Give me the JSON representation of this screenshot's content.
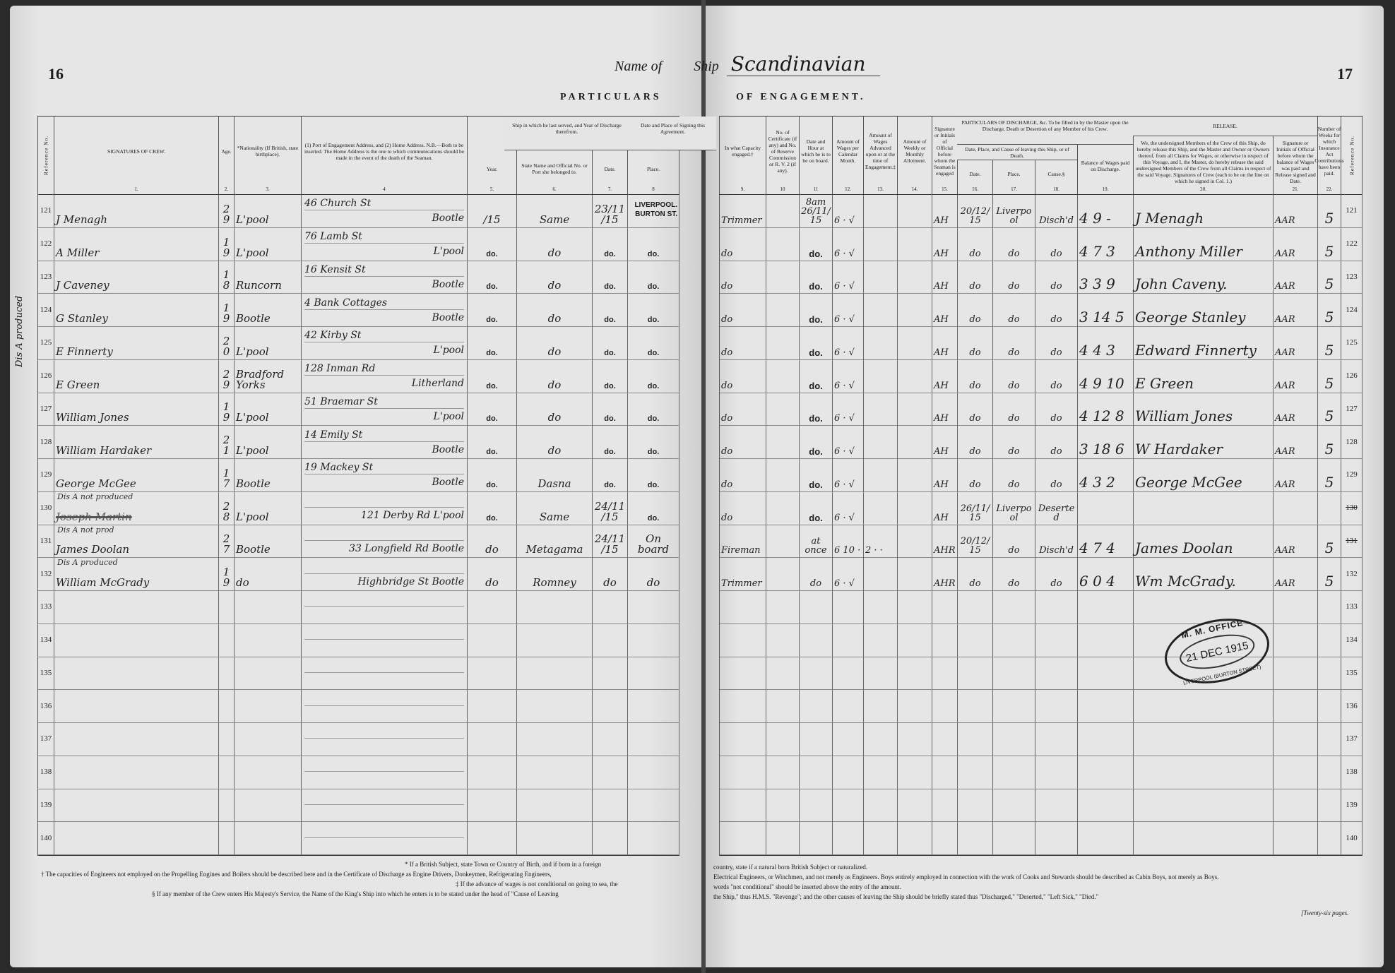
{
  "left_page_number": "16",
  "right_page_number": "17",
  "title": {
    "label_name": "Name",
    "label_of": "of",
    "label_ship": "Ship",
    "ship_name": "Scandinavian"
  },
  "banner_left": "PARTICULARS",
  "banner_right": "OF ENGAGEMENT.",
  "margin_note": "Dis A produced",
  "left_headers": [
    {
      "label": "Reference No.",
      "num": "",
      "vertical": true
    },
    {
      "label": "SIGNATURES OF CREW.",
      "num": "1."
    },
    {
      "label": "Age.",
      "num": "2."
    },
    {
      "label": "*Nationality (If British, state birthplace).",
      "num": "3."
    },
    {
      "label": "(1) Port of Engagement Address, and (2) Home Address. N.B.—Both to be inserted. The Home Address is the one to which communications should be made in the event of the death of the Seaman.",
      "num": "4"
    },
    {
      "label": "Year.",
      "num": "5.",
      "low": true
    },
    {
      "label": "State Name and Official No. or Port she belonged to.",
      "num": "6.",
      "low": true
    },
    {
      "label": "Date.",
      "num": "7.",
      "low": true
    },
    {
      "label": "Place.",
      "num": "8",
      "low": true
    }
  ],
  "left_groups": {
    "last_ship": "Ship in which he last served, and Year of Discharge therefrom.",
    "signing": "Date and Place of Signing this Agreement."
  },
  "right_headers": [
    {
      "label": "In what Capacity engaged.†",
      "num": "9."
    },
    {
      "label": "No. of Certificate (if any) and No. of Reserve Commission or R. V. 2 (if any).",
      "num": "10"
    },
    {
      "label": "Date and Hour at which he is to be on board.",
      "num": "11"
    },
    {
      "label": "Amount of Wages per Calendar Month.",
      "num": "12."
    },
    {
      "label": "Amount of Wages Advanced upon or at the time of Engagement.‡",
      "num": "13."
    },
    {
      "label": "Amount of Weekly or Monthly Allotment.",
      "num": "14."
    },
    {
      "label": "Signature or Initials of Official before whom the Seaman is engaged",
      "num": "15."
    },
    {
      "label": "Date.",
      "num": "16.",
      "low": true
    },
    {
      "label": "Place.",
      "num": "17.",
      "low": true
    },
    {
      "label": "Cause.§",
      "num": "18.",
      "low": true
    },
    {
      "label": "Balance of Wages paid on Discharge.",
      "num": "19.",
      "low": true
    },
    {
      "label": "We, the undersigned Members of the Crew of this Ship, do hereby release this Ship, and the Master and Owner or Owners thereof, from all Claims for Wages, or otherwise in respect of this Voyage, and I, the Master, do hereby release the said undersigned Members of the Crew from all Claims in respect of the said Voyage. Signatures of Crew (each to be on the line on which he signed in Col. 1.)",
      "num": "20.",
      "low": true
    },
    {
      "label": "Signature or Initials of Official before whom the balance of Wages was paid and Release signed and Date.",
      "num": "21.",
      "low": true
    },
    {
      "label": "Number of Weeks for which Insurance Act Contributions have been paid.",
      "num": "22."
    },
    {
      "label": "Reference No.",
      "num": "",
      "vertical": true
    }
  ],
  "right_groups": {
    "discharge": "PARTICULARS OF DISCHARGE, &c. To be filled in by the Master upon the Discharge, Death or Desertion of any Member of his Crew.",
    "discharge_sub": "Date, Place, and Cause of leaving this Ship, or of Death.",
    "release": "RELEASE."
  },
  "signing_place_stamp": [
    "LIVERPOOL.",
    "BURTON ST."
  ],
  "crew_left": [
    {
      "ref": "121",
      "signature": "J Menagh",
      "age": "29",
      "nationality": "L'pool",
      "addr1": "46 Church St",
      "addr2": "Bootle",
      "year": "/15",
      "ship": "Same",
      "date": "23/11/15",
      "place": ""
    },
    {
      "ref": "122",
      "signature": "A Miller",
      "age": "19",
      "nationality": "L'pool",
      "addr1": "76 Lamb St",
      "addr2": "L'pool",
      "year": "do.",
      "ship": "do",
      "date": "do.",
      "place": "do."
    },
    {
      "ref": "123",
      "signature": "J Caveney",
      "age": "18",
      "nationality": "Runcorn",
      "addr1": "16 Kensit St",
      "addr2": "Bootle",
      "year": "do.",
      "ship": "do",
      "date": "do.",
      "place": "do."
    },
    {
      "ref": "124",
      "signature": "G Stanley",
      "age": "19",
      "nationality": "Bootle",
      "addr1": "4 Bank Cottages",
      "addr2": "Bootle",
      "year": "do.",
      "ship": "do",
      "date": "do.",
      "place": "do."
    },
    {
      "ref": "125",
      "signature": "E Finnerty",
      "age": "20",
      "nationality": "L'pool",
      "addr1": "42 Kirby St",
      "addr2": "L'pool",
      "year": "do.",
      "ship": "do",
      "date": "do.",
      "place": "do."
    },
    {
      "ref": "126",
      "signature": "E Green",
      "age": "29",
      "nationality": "Bradford Yorks",
      "addr1": "128 Inman Rd",
      "addr2": "Litherland",
      "year": "do.",
      "ship": "do",
      "date": "do.",
      "place": "do."
    },
    {
      "ref": "127",
      "signature": "William Jones",
      "age": "19",
      "nationality": "L'pool",
      "addr1": "51 Braemar St",
      "addr2": "L'pool",
      "year": "do.",
      "ship": "do",
      "date": "do.",
      "place": "do."
    },
    {
      "ref": "128",
      "signature": "William Hardaker",
      "age": "21",
      "nationality": "L'pool",
      "addr1": "14 Emily St",
      "addr2": "Bootle",
      "year": "do.",
      "ship": "do",
      "date": "do.",
      "place": "do."
    },
    {
      "ref": "129",
      "signature": "George McGee",
      "age": "17",
      "nationality": "Bootle",
      "addr1": "19 Mackey St",
      "addr2": "Bootle",
      "year": "do.",
      "ship": "Dasna",
      "date": "do.",
      "place": "do."
    },
    {
      "ref": "130",
      "note": "Dis A not produced",
      "signature": "Joseph Martin",
      "struck": true,
      "age": "28",
      "nationality": "L'pool",
      "addr1": "",
      "addr2": "121 Derby Rd L'pool",
      "year": "do.",
      "ship": "Same",
      "date": "24/11/15",
      "place": "do."
    },
    {
      "ref": "131",
      "note": "Dis A not prod",
      "signature": "James Doolan",
      "age": "27",
      "nationality": "Bootle",
      "addr1": "",
      "addr2": "33 Longfield Rd Bootle",
      "year": "do",
      "ship": "Metagama",
      "date": "24/11/15",
      "place": "On board"
    },
    {
      "ref": "132",
      "note": "Dis A produced",
      "signature": "William McGrady",
      "age": "19",
      "nationality": "do",
      "addr1": "",
      "addr2": "Highbridge St Bootle",
      "year": "do",
      "ship": "Romney",
      "date": "do",
      "place": "do"
    },
    {
      "ref": "133"
    },
    {
      "ref": "134"
    },
    {
      "ref": "135"
    },
    {
      "ref": "136"
    },
    {
      "ref": "137"
    },
    {
      "ref": "138"
    },
    {
      "ref": "139"
    },
    {
      "ref": "140"
    }
  ],
  "crew_right": [
    {
      "capacity": "Trimmer",
      "board": "8am 26/11/15",
      "wages": "6 · √",
      "official": "AH",
      "dis_date": "20/12/15",
      "dis_place": "Liverpool",
      "cause": "Disch'd",
      "balance": "4 9 -",
      "release": "J Menagh",
      "release_official": "AAR",
      "weeks": "5",
      "ref": "121"
    },
    {
      "capacity": "do",
      "board": "do.",
      "wages": "6 · √",
      "official": "AH",
      "dis_date": "do",
      "dis_place": "do",
      "cause": "do",
      "balance": "4 7 3",
      "release": "Anthony Miller",
      "release_official": "AAR",
      "weeks": "5",
      "ref": "122"
    },
    {
      "capacity": "do",
      "board": "do.",
      "wages": "6 · √",
      "official": "AH",
      "dis_date": "do",
      "dis_place": "do",
      "cause": "do",
      "balance": "3 3 9",
      "release": "John Caveny.",
      "release_official": "AAR",
      "weeks": "5",
      "ref": "123"
    },
    {
      "capacity": "do",
      "board": "do.",
      "wages": "6 · √",
      "official": "AH",
      "dis_date": "do",
      "dis_place": "do",
      "cause": "do",
      "balance": "3 14 5",
      "release": "George Stanley",
      "release_official": "AAR",
      "weeks": "5",
      "ref": "124"
    },
    {
      "capacity": "do",
      "board": "do.",
      "wages": "6 · √",
      "official": "AH",
      "dis_date": "do",
      "dis_place": "do",
      "cause": "do",
      "balance": "4 4 3",
      "release": "Edward Finnerty",
      "release_official": "AAR",
      "weeks": "5",
      "ref": "125"
    },
    {
      "capacity": "do",
      "board": "do.",
      "wages": "6 · √",
      "official": "AH",
      "dis_date": "do",
      "dis_place": "do",
      "cause": "do",
      "balance": "4 9 10",
      "release": "E Green",
      "release_official": "AAR",
      "weeks": "5",
      "ref": "126"
    },
    {
      "capacity": "do",
      "board": "do.",
      "wages": "6 · √",
      "official": "AH",
      "dis_date": "do",
      "dis_place": "do",
      "cause": "do",
      "balance": "4 12 8",
      "release": "William Jones",
      "release_official": "AAR",
      "weeks": "5",
      "ref": "127"
    },
    {
      "capacity": "do",
      "board": "do.",
      "wages": "6 · √",
      "official": "AH",
      "dis_date": "do",
      "dis_place": "do",
      "cause": "do",
      "balance": "3 18 6",
      "release": "W Hardaker",
      "release_official": "AAR",
      "weeks": "5",
      "ref": "128"
    },
    {
      "capacity": "do",
      "board": "do.",
      "wages": "6 · √",
      "official": "AH",
      "dis_date": "do",
      "dis_place": "do",
      "cause": "do",
      "balance": "4 3 2",
      "release": "George McGee",
      "release_official": "AAR",
      "weeks": "5",
      "ref": "129"
    },
    {
      "capacity": "do",
      "board": "do.",
      "wages": "6 · √",
      "official": "AH",
      "dis_date": "26/11/15",
      "dis_place": "Liverpool",
      "cause": "Deserted",
      "balance": "",
      "release": "",
      "release_official": "",
      "weeks": "",
      "ref": "130",
      "ref_crossed": true
    },
    {
      "capacity": "Fireman",
      "board": "at once",
      "wages": "6 10 ·",
      "advance": "2 · ·",
      "official": "AHR",
      "dis_date": "20/12/15",
      "dis_place": "do",
      "cause": "Disch'd",
      "balance": "4 7 4",
      "release": "James Doolan",
      "release_official": "AAR",
      "weeks": "5",
      "ref": "131",
      "ref_crossed": true
    },
    {
      "capacity": "Trimmer",
      "board": "do",
      "wages": "6 · √",
      "official": "AHR",
      "dis_date": "do",
      "dis_place": "do",
      "cause": "do",
      "balance": "6 0 4",
      "release": "Wm McGrady.",
      "release_official": "AAR",
      "weeks": "5",
      "ref": "132"
    },
    {
      "ref": "133"
    },
    {
      "ref": "134"
    },
    {
      "ref": "135"
    },
    {
      "ref": "136"
    },
    {
      "ref": "137"
    },
    {
      "ref": "138"
    },
    {
      "ref": "139"
    },
    {
      "ref": "140"
    }
  ],
  "stamp": {
    "top": "M. M. OFFICE",
    "date": "21 DEC 1915",
    "bottom": "LIVERPOOL (BURTON STREET)"
  },
  "footnotes_left": [
    "† The capacities of Engineers not employed on the Propelling Engines and Boilers should be described here and in the Certificate of Discharge as Engine Drivers, Donkeymen, Refrigerating Engineers,",
    "§ If any member of the Crew enters His Majesty's Service, the Name of the King's Ship into which he enters is to be stated under the head of \"Cause of Leaving"
  ],
  "footnotes_left_right": [
    "* If a British Subject, state Town or Country of Birth, and if born in a foreign",
    "‡ If the advance of wages is not conditional on going to sea, the"
  ],
  "footnotes_right": [
    "country, state if a natural born British Subject or naturalized.",
    "Electrical Engineers, or Winchmen, and not merely as Engineers.    Boys entirely employed in connection with the work of Cooks and Stewards should be described as Cabin Boys, not merely as Boys.",
    "words \"not conditional\" should be inserted above the entry of the amount.",
    "the Ship,\" thus H.M.S. \"Revenge\"; and the other causes of leaving the Ship should be briefly stated thus \"Discharged,\" \"Deserted,\" \"Left Sick,\" \"Died.\""
  ],
  "pages_note": "[Twenty-six pages."
}
